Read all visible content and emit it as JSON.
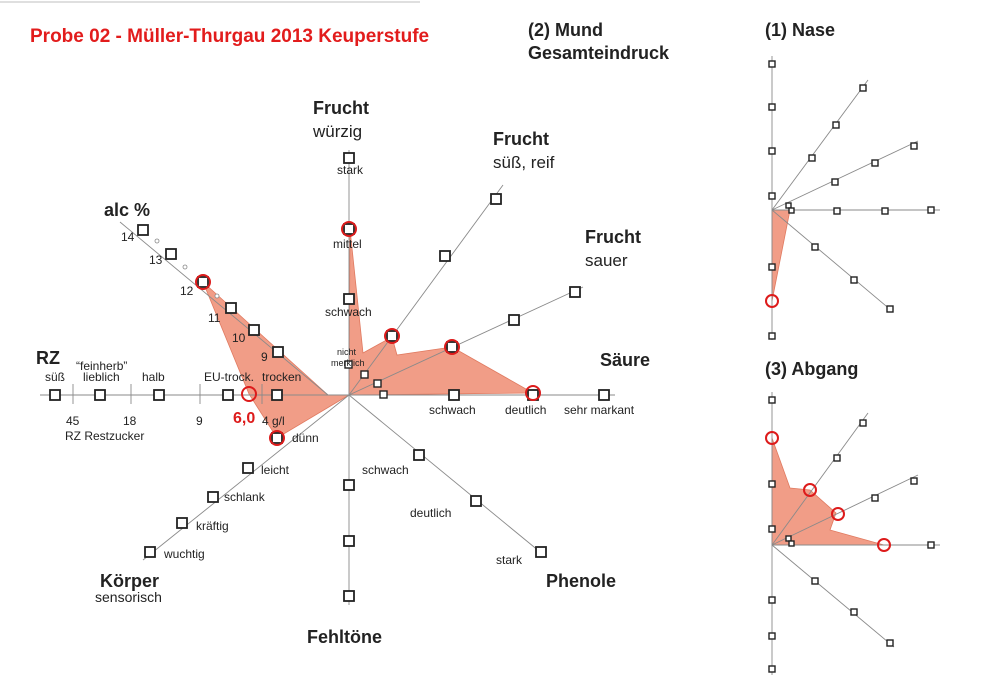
{
  "title": "Probe 02 - Müller-Thurgau 2013  Keuperstufe",
  "colors": {
    "title": "#e21c1c",
    "area": "#ee8c72",
    "marker": "#dd1b1b"
  },
  "main_heading": {
    "line1": "(2) Mund",
    "line2": "Gesamteindruck"
  },
  "nase_heading": "(1) Nase",
  "abgang_heading": "(3) Abgang",
  "axes": {
    "frucht_wuerzig": {
      "title": "Frucht",
      "sub": "würzig",
      "levels": [
        "stark",
        "mittel",
        "schwach"
      ]
    },
    "frucht_suess": {
      "title": "Frucht",
      "sub": "süß, reif"
    },
    "frucht_sauer": {
      "title": "Frucht",
      "sub": "sauer"
    },
    "saeure": {
      "title": "Säure",
      "levels": [
        "schwach",
        "deutlich",
        "sehr markant"
      ]
    },
    "phenole": {
      "title": "Phenole",
      "levels": [
        "schwach",
        "deutlich",
        "stark"
      ]
    },
    "fehltoene": {
      "title": "Fehltöne"
    },
    "koerper": {
      "title": "Körper",
      "sub": "sensorisch",
      "levels": [
        "dünn",
        "leicht",
        "schlank",
        "kräftig",
        "wuchtig"
      ]
    },
    "alc": {
      "title": "alc %",
      "ticks": [
        "14",
        "13",
        "12",
        "11",
        "10",
        "9"
      ]
    },
    "rz": {
      "title": "RZ",
      "categories": [
        "süß",
        "“feinherb”",
        "lieblich",
        "halb",
        "EU-trock.",
        "trocken"
      ],
      "numbers": [
        "45",
        "18",
        "9",
        "4 g/l"
      ],
      "caption": "RZ Restzucker",
      "value": "6,0"
    },
    "center_label": "nicht merklich"
  }
}
